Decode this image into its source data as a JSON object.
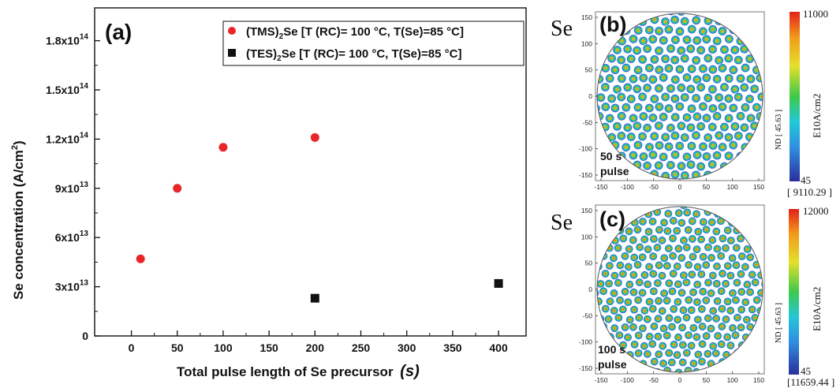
{
  "chart_data": [
    {
      "type": "scatter",
      "panel_label": "(a)",
      "xlabel": "Total pulse length of Se precursor",
      "xlabel_unit": "(s)",
      "ylabel": "Se concentration (A/cm",
      "ylabel_sup": "2",
      "ylabel_end": ")",
      "xlim": [
        -40,
        430
      ],
      "ylim": [
        0,
        200000000000000.0
      ],
      "x_ticks": [
        0,
        50,
        100,
        150,
        200,
        250,
        300,
        350,
        400
      ],
      "y_ticks": [
        {
          "value": 0,
          "label": "0"
        },
        {
          "value": 30000000000000.0,
          "label": "3x10",
          "exp": "13"
        },
        {
          "value": 60000000000000.0,
          "label": "6x10",
          "exp": "13"
        },
        {
          "value": 90000000000000.0,
          "label": "9x10",
          "exp": "13"
        },
        {
          "value": 120000000000000.0,
          "label": "1.2x10",
          "exp": "14"
        },
        {
          "value": 150000000000000.0,
          "label": "1.5x10",
          "exp": "14"
        },
        {
          "value": 180000000000000.0,
          "label": "1.8x10",
          "exp": "14"
        }
      ],
      "legend_position": "top-right",
      "series": [
        {
          "legend_pre": "(TMS)",
          "legend_sub": "2",
          "legend_post": "Se [T (RC)= 100 °C, T(Se)=85 °C]",
          "color": "#e8262a",
          "marker": "circle",
          "points": [
            {
              "x": 10,
              "y": 47000000000000.0
            },
            {
              "x": 50,
              "y": 90000000000000.0
            },
            {
              "x": 100,
              "y": 115000000000000.0
            },
            {
              "x": 200,
              "y": 121000000000000.0
            }
          ]
        },
        {
          "legend_pre": "(TES)",
          "legend_sub": "2",
          "legend_post": "Se [T (RC)= 100 °C, T(Se)=85 °C]",
          "color": "#111111",
          "marker": "square",
          "points": [
            {
              "x": 200,
              "y": 23000000000000.0
            },
            {
              "x": 400,
              "y": 32000000000000.0
            }
          ]
        }
      ]
    },
    {
      "type": "heatmap",
      "panel_label": "(b)",
      "element_label": "Se",
      "annotation_line1": "50 s",
      "annotation_line2": "pulse",
      "x_ticks": [
        -150,
        -100,
        -50,
        0,
        50,
        100,
        150
      ],
      "y_ticks": [
        150,
        100,
        50,
        0,
        -50,
        -100,
        -150
      ],
      "colorbar_max": "11000",
      "colorbar_min": "45",
      "colorbar_unit": "E10A/cm2",
      "side_label": "ND [ 45.63 ]",
      "bottom_value": "[ 9110.29 ]"
    },
    {
      "type": "heatmap",
      "panel_label": "(c)",
      "element_label": "Se",
      "annotation_line1": "100 s",
      "annotation_line2": "pulse",
      "x_ticks": [
        -150,
        -100,
        -50,
        0,
        50,
        100,
        150
      ],
      "y_ticks": [
        150,
        100,
        50,
        0,
        -50,
        -100,
        -150
      ],
      "colorbar_max": "12000",
      "colorbar_min": "45",
      "colorbar_unit": "E10A/cm2",
      "side_label": "ND [ 45.63 ]",
      "bottom_value": "[11659.44 ]"
    }
  ]
}
